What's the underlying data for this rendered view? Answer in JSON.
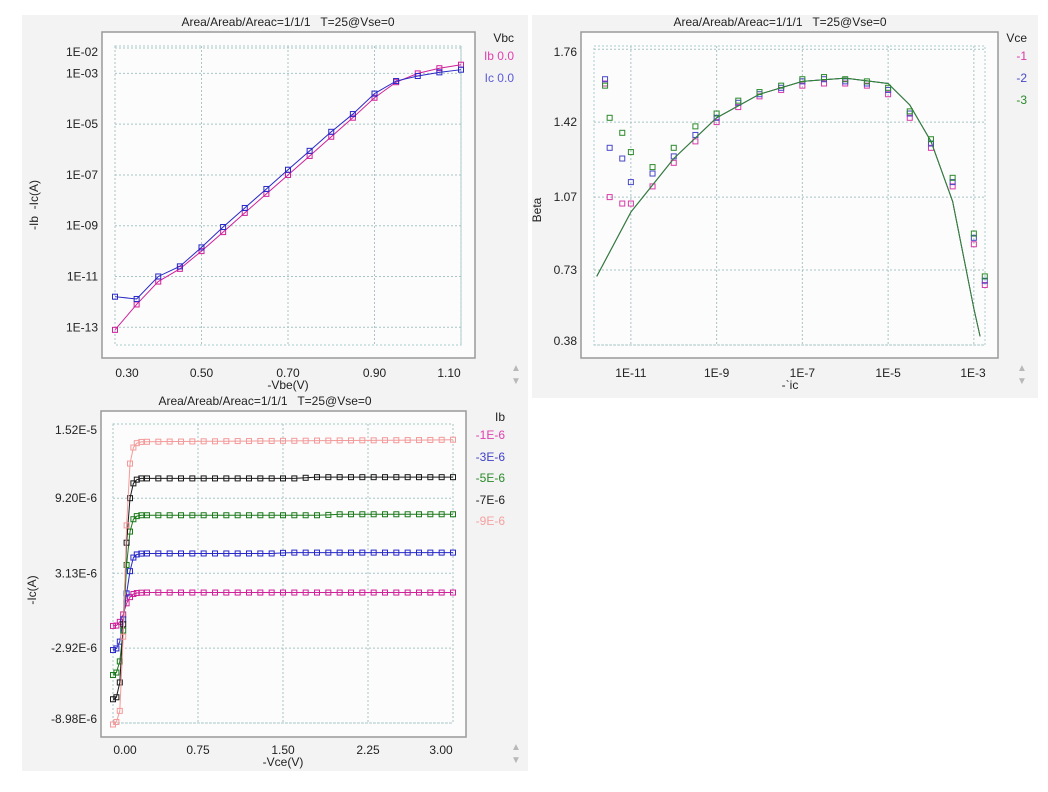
{
  "chart_data": [
    {
      "type": "scatter",
      "title": "Area/Areab/Areac=1/1/1   T=25@Vse=0",
      "xlabel": "-Vbe(V)",
      "ylabel": "-Ib  -Ic(A)",
      "xscale": "linear",
      "yscale": "log",
      "xlim": [
        0.3,
        1.1
      ],
      "ylim": [
        2e-14,
        0.012
      ],
      "grid": true,
      "legend_title": "Vbc",
      "legend_position": "right",
      "xticks": [
        {
          "value": 0.3,
          "label": "0.30"
        },
        {
          "value": 0.5,
          "label": "0.50"
        },
        {
          "value": 0.7,
          "label": "0.70"
        },
        {
          "value": 0.9,
          "label": "0.90"
        },
        {
          "value": 1.1,
          "label": "1.10"
        }
      ],
      "yticks": [
        {
          "value": 0.01,
          "label": "1E-02"
        },
        {
          "value": 0.001,
          "label": "1E-03"
        },
        {
          "value": 1e-05,
          "label": "1E-05"
        },
        {
          "value": 1e-07,
          "label": "1E-07"
        },
        {
          "value": 1e-09,
          "label": "1E-09"
        },
        {
          "value": 1e-11,
          "label": "1E-11"
        },
        {
          "value": 1e-13,
          "label": "1E-13"
        }
      ],
      "x": [
        0.3,
        0.35,
        0.4,
        0.45,
        0.5,
        0.55,
        0.6,
        0.65,
        0.7,
        0.75,
        0.8,
        0.85,
        0.9,
        0.95,
        1.0,
        1.05,
        1.1
      ],
      "series": [
        {
          "name": "Ib 0.0",
          "color": "#d0209a",
          "legend_color": "#e040b0",
          "values": [
            7.9e-14,
            7.9e-13,
            6.3e-12,
            2e-11,
            1e-10,
            5.6e-10,
            3.2e-09,
            1.8e-08,
            1e-07,
            5.6e-07,
            3.2e-06,
            1.8e-05,
            0.00011,
            0.00045,
            0.001,
            0.0016,
            0.0022
          ]
        },
        {
          "name": "Ic 0.0",
          "color": "#2828c8",
          "legend_color": "#5a5ad8",
          "values": [
            1.6e-12,
            1.3e-12,
            1e-11,
            2.5e-11,
            1.4e-10,
            8.9e-10,
            5e-09,
            2.8e-08,
            1.6e-07,
            8.9e-07,
            5e-06,
            2.5e-05,
            0.00016,
            0.0005,
            0.00079,
            0.0011,
            0.0014
          ]
        }
      ]
    },
    {
      "type": "scatter",
      "title": "Area/Areab/Areac=1/1/1   T=25@Vse=0",
      "xlabel": "-`ic",
      "ylabel": "Beta",
      "xscale": "log",
      "yscale": "linear",
      "xlim": [
        1.38e-12,
        0.00182
      ],
      "ylim": [
        0.38,
        1.775
      ],
      "grid": true,
      "legend_title": "Vce",
      "legend_position": "right",
      "xticks": [
        {
          "value": 1e-11,
          "label": "1E-11"
        },
        {
          "value": 1e-09,
          "label": "1E-9"
        },
        {
          "value": 1e-07,
          "label": "1E-7"
        },
        {
          "value": 1e-05,
          "label": "1E-5"
        },
        {
          "value": 0.001,
          "label": "1E-3"
        }
      ],
      "yticks": [
        {
          "value": 1.76,
          "label": "1.76"
        },
        {
          "value": 1.42,
          "label": "1.42"
        },
        {
          "value": 1.07,
          "label": "1.07"
        },
        {
          "value": 0.73,
          "label": "0.73"
        },
        {
          "value": 0.38,
          "label": "0.38"
        }
      ],
      "x": [
        2.5e-12,
        3.2e-12,
        6.3e-12,
        1e-11,
        3.2e-11,
        1e-10,
        3.2e-10,
        1e-09,
        3.2e-09,
        1e-08,
        3.2e-08,
        1e-07,
        3.2e-07,
        1e-06,
        3.2e-06,
        1e-05,
        3.2e-05,
        0.0001,
        0.00032,
        0.001,
        0.0018
      ],
      "series": [
        {
          "name": "-1",
          "color": "#d83aa8",
          "values": [
            1.6,
            1.07,
            1.04,
            1.04,
            1.12,
            1.23,
            1.33,
            1.42,
            1.49,
            1.54,
            1.57,
            1.59,
            1.6,
            1.6,
            1.59,
            1.55,
            1.44,
            1.3,
            1.12,
            0.85,
            0.66
          ]
        },
        {
          "name": "-2",
          "color": "#4848c8",
          "values": [
            1.62,
            1.3,
            1.25,
            1.14,
            1.18,
            1.26,
            1.36,
            1.44,
            1.51,
            1.55,
            1.58,
            1.61,
            1.62,
            1.61,
            1.6,
            1.57,
            1.46,
            1.32,
            1.14,
            0.88,
            0.68
          ]
        },
        {
          "name": "-3",
          "color": "#2a8a2a",
          "values": [
            1.59,
            1.44,
            1.37,
            1.28,
            1.21,
            1.3,
            1.4,
            1.46,
            1.52,
            1.56,
            1.59,
            1.62,
            1.63,
            1.62,
            1.61,
            1.58,
            1.47,
            1.34,
            1.16,
            0.9,
            0.7
          ]
        }
      ],
      "model_curve": {
        "x": [
          1.6e-12,
          1e-11,
          1e-10,
          1e-09,
          1e-08,
          1e-07,
          1e-06,
          1e-05,
          3.2e-05,
          0.0001,
          0.00032,
          0.001,
          0.0014
        ],
        "values": [
          0.7,
          1.0,
          1.25,
          1.44,
          1.55,
          1.61,
          1.625,
          1.6,
          1.5,
          1.33,
          1.05,
          0.55,
          0.42
        ]
      }
    },
    {
      "type": "line",
      "title": "Area/Areab/Areac=1/1/1   T=25@Vse=0",
      "xlabel": "-Vce(V)",
      "ylabel": "-Ic(A)",
      "xscale": "linear",
      "yscale": "linear",
      "xlim": [
        0,
        3.0
      ],
      "ylim": [
        -8.98e-06,
        1.52e-05
      ],
      "value_scale": 1e-06,
      "grid": true,
      "legend_title": "Ib",
      "legend_position": "right",
      "xticks": [
        {
          "value": 0,
          "label": "0.00"
        },
        {
          "value": 0.75,
          "label": "0.75"
        },
        {
          "value": 1.5,
          "label": "1.50"
        },
        {
          "value": 2.25,
          "label": "2.25"
        },
        {
          "value": 3.0,
          "label": "3.00"
        }
      ],
      "yticks": [
        {
          "value": 1.52e-05,
          "label": "1.52E-5"
        },
        {
          "value": 9.2e-06,
          "label": "9.20E-6"
        },
        {
          "value": 3.13e-06,
          "label": "3.13E-6"
        },
        {
          "value": -2.92e-06,
          "label": "-2.92E-6"
        },
        {
          "value": -8.98e-06,
          "label": "-8.98E-6"
        }
      ],
      "x": [
        0,
        0.03,
        0.06,
        0.09,
        0.12,
        0.15,
        0.18,
        0.21,
        0.25,
        0.3,
        0.4,
        0.5,
        0.6,
        0.7,
        0.8,
        0.9,
        1.0,
        1.1,
        1.2,
        1.3,
        1.4,
        1.5,
        1.6,
        1.7,
        1.8,
        1.9,
        2.0,
        2.1,
        2.2,
        2.3,
        2.4,
        2.5,
        2.6,
        2.7,
        2.8,
        2.9,
        3.0
      ],
      "series": [
        {
          "name": "-1E-6",
          "color": "#d0209a",
          "legend_color": "#e040b0",
          "values": [
            -1.13,
            -1.1,
            -0.8,
            -0.2,
            0.7,
            1.2,
            1.45,
            1.53,
            1.56,
            1.57,
            1.57,
            1.57,
            1.57,
            1.57,
            1.57,
            1.57,
            1.57,
            1.57,
            1.57,
            1.57,
            1.57,
            1.57,
            1.57,
            1.57,
            1.57,
            1.57,
            1.57,
            1.57,
            1.57,
            1.57,
            1.57,
            1.57,
            1.57,
            1.57,
            1.57,
            1.57,
            1.57
          ]
        },
        {
          "name": "-3E-6",
          "color": "#2828c8",
          "legend_color": "#4040c8",
          "values": [
            -3.08,
            -2.95,
            -2.4,
            -0.6,
            1.5,
            3.3,
            4.4,
            4.65,
            4.72,
            4.73,
            4.73,
            4.73,
            4.73,
            4.73,
            4.73,
            4.73,
            4.73,
            4.73,
            4.73,
            4.73,
            4.73,
            4.78,
            4.8,
            4.8,
            4.8,
            4.8,
            4.8,
            4.8,
            4.8,
            4.8,
            4.8,
            4.8,
            4.8,
            4.8,
            4.8,
            4.8,
            4.8
          ]
        },
        {
          "name": "-5E-6",
          "color": "#1a7a1a",
          "legend_color": "#2a8a2a",
          "values": [
            -5.1,
            -4.9,
            -4.0,
            -1.5,
            3.8,
            6.5,
            7.5,
            7.75,
            7.82,
            7.82,
            7.82,
            7.82,
            7.82,
            7.82,
            7.82,
            7.82,
            7.82,
            7.82,
            7.82,
            7.82,
            7.82,
            7.82,
            7.82,
            7.82,
            7.82,
            7.85,
            7.9,
            7.9,
            7.9,
            7.9,
            7.9,
            7.9,
            7.9,
            7.9,
            7.9,
            7.9,
            7.9
          ]
        },
        {
          "name": "-7E-6",
          "color": "#1a1a1a",
          "legend_color": "#222222",
          "values": [
            -7.06,
            -6.9,
            -5.7,
            -1.0,
            5.6,
            9.2,
            10.4,
            10.7,
            10.8,
            10.8,
            10.8,
            10.8,
            10.8,
            10.8,
            10.8,
            10.8,
            10.8,
            10.8,
            10.8,
            10.8,
            10.8,
            10.8,
            10.8,
            10.85,
            10.9,
            10.9,
            10.9,
            10.9,
            10.9,
            10.9,
            10.9,
            10.9,
            10.9,
            10.9,
            10.9,
            10.9,
            10.9
          ]
        },
        {
          "name": "-9E-6",
          "color": "#f49a9a",
          "legend_color": "#f4a0a0",
          "values": [
            -9.1,
            -8.9,
            -8.0,
            -2.0,
            7.0,
            12.0,
            13.3,
            13.65,
            13.75,
            13.76,
            13.77,
            13.78,
            13.78,
            13.79,
            13.8,
            13.8,
            13.81,
            13.82,
            13.82,
            13.83,
            13.83,
            13.84,
            13.84,
            13.85,
            13.86,
            13.86,
            13.87,
            13.87,
            13.88,
            13.88,
            13.89,
            13.89,
            13.9,
            13.9,
            13.91,
            13.92,
            13.93
          ]
        }
      ]
    }
  ],
  "controls": {
    "scroll_up": "▲",
    "scroll_down": "▼"
  }
}
